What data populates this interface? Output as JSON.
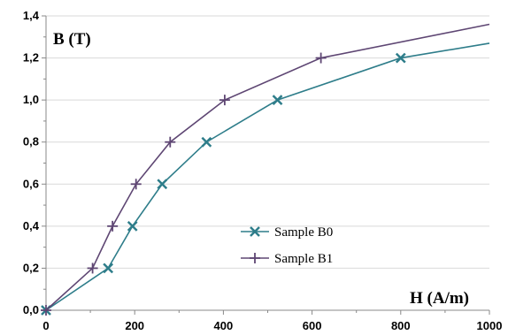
{
  "chart_data": {
    "type": "line",
    "title": "",
    "xlabel": "H (A/m)",
    "ylabel": "B (T)",
    "xlim": [
      0,
      1000
    ],
    "ylim": [
      0,
      1.4
    ],
    "x_ticks": [
      0,
      200,
      400,
      600,
      800,
      1000
    ],
    "y_ticks": [
      0.0,
      0.2,
      0.4,
      0.6,
      0.8,
      1.0,
      1.2,
      1.4
    ],
    "x_tick_labels": [
      "0",
      "200",
      "400",
      "600",
      "800",
      "1000"
    ],
    "y_tick_labels": [
      "0,0",
      "0,2",
      "0,4",
      "0,6",
      "0,8",
      "1,0",
      "1,2",
      "1,4"
    ],
    "grid": "horizontal",
    "legend_position": "center",
    "series": [
      {
        "name": "Sample B0",
        "color": "#2e7d8a",
        "marker": "x",
        "points": [
          {
            "x": 0,
            "y": 0.0
          },
          {
            "x": 140,
            "y": 0.2
          },
          {
            "x": 195,
            "y": 0.4
          },
          {
            "x": 262,
            "y": 0.6
          },
          {
            "x": 362,
            "y": 0.8
          },
          {
            "x": 522,
            "y": 1.0
          },
          {
            "x": 800,
            "y": 1.2
          },
          {
            "x": 1000,
            "y": 1.27
          }
        ],
        "marked_points": 7
      },
      {
        "name": "Sample B1",
        "color": "#5e4673",
        "marker": "+",
        "points": [
          {
            "x": 0,
            "y": 0.0
          },
          {
            "x": 105,
            "y": 0.2
          },
          {
            "x": 150,
            "y": 0.4
          },
          {
            "x": 203,
            "y": 0.6
          },
          {
            "x": 280,
            "y": 0.8
          },
          {
            "x": 403,
            "y": 1.0
          },
          {
            "x": 620,
            "y": 1.2
          },
          {
            "x": 1000,
            "y": 1.36
          }
        ],
        "marked_points": 7
      }
    ]
  }
}
